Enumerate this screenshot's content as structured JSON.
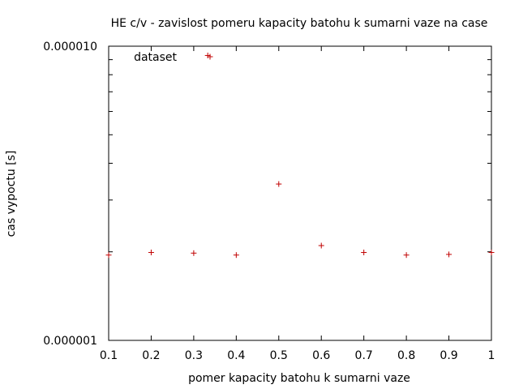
{
  "chart_data": {
    "type": "scatter",
    "title": "HE c/v - zavislost pomeru kapacity batohu k sumarni vaze na case",
    "xlabel": "pomer kapacity batohu k sumarni vaze",
    "ylabel": "cas vypoctu [s]",
    "xlim": [
      0.1,
      1.0
    ],
    "ylim": [
      1e-06,
      1e-05
    ],
    "yscale": "log",
    "x_ticks": [
      "0.1",
      "0.2",
      "0.3",
      "0.4",
      "0.5",
      "0.6",
      "0.7",
      "0.8",
      "0.9",
      "1"
    ],
    "x_tick_values": [
      0.1,
      0.2,
      0.3,
      0.4,
      0.5,
      0.6,
      0.7,
      0.8,
      0.9,
      1.0
    ],
    "y_ticks": [
      "0.000001",
      "0.000010"
    ],
    "y_tick_values": [
      1e-06,
      1e-05
    ],
    "legend_position": "top-left",
    "grid": false,
    "marker": "+",
    "series": [
      {
        "name": "dataset",
        "color": "#c00000",
        "points": [
          {
            "x": 0.1,
            "y": 1.95e-06
          },
          {
            "x": 0.2,
            "y": 1.99e-06
          },
          {
            "x": 0.3,
            "y": 1.98e-06
          },
          {
            "x": 0.333,
            "y": 9.3e-06
          },
          {
            "x": 0.4,
            "y": 1.95e-06
          },
          {
            "x": 0.5,
            "y": 3.4e-06
          },
          {
            "x": 0.6,
            "y": 2.1e-06
          },
          {
            "x": 0.7,
            "y": 1.99e-06
          },
          {
            "x": 0.8,
            "y": 1.95e-06
          },
          {
            "x": 0.9,
            "y": 1.96e-06
          },
          {
            "x": 1.0,
            "y": 1.99e-06
          }
        ]
      }
    ]
  }
}
